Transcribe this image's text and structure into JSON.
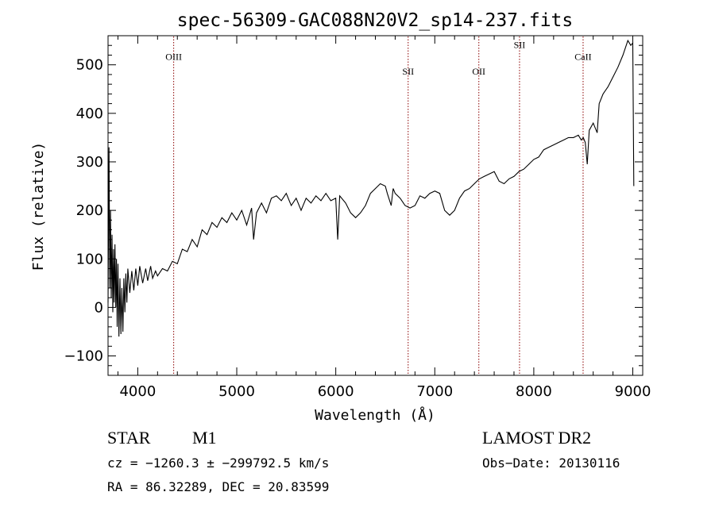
{
  "chart_data": {
    "type": "line",
    "title": "spec-56309-GAC088N20V2_sp14-237.fits",
    "xlabel": "Wavelength (Å)",
    "ylabel": "Flux (relative)",
    "xlim": [
      3700,
      9100
    ],
    "ylim": [
      -140,
      560
    ],
    "x_ticks": [
      4000,
      5000,
      6000,
      7000,
      8000,
      9000
    ],
    "y_ticks": [
      -100,
      0,
      100,
      200,
      300,
      400,
      500
    ],
    "grid": false,
    "series": [
      {
        "points": [
          [
            3700,
            10
          ],
          [
            3710,
            330
          ],
          [
            3718,
            40
          ],
          [
            3725,
            200
          ],
          [
            3732,
            20
          ],
          [
            3740,
            150
          ],
          [
            3748,
            -10
          ],
          [
            3755,
            120
          ],
          [
            3762,
            10
          ],
          [
            3770,
            130
          ],
          [
            3778,
            0
          ],
          [
            3785,
            100
          ],
          [
            3792,
            -40
          ],
          [
            3800,
            90
          ],
          [
            3810,
            -60
          ],
          [
            3820,
            60
          ],
          [
            3830,
            -55
          ],
          [
            3840,
            40
          ],
          [
            3850,
            -50
          ],
          [
            3860,
            60
          ],
          [
            3870,
            -10
          ],
          [
            3880,
            70
          ],
          [
            3890,
            10
          ],
          [
            3900,
            80
          ],
          [
            3920,
            30
          ],
          [
            3940,
            75
          ],
          [
            3960,
            35
          ],
          [
            3980,
            80
          ],
          [
            4000,
            45
          ],
          [
            4020,
            85
          ],
          [
            4050,
            50
          ],
          [
            4080,
            80
          ],
          [
            4100,
            55
          ],
          [
            4130,
            85
          ],
          [
            4150,
            60
          ],
          [
            4180,
            75
          ],
          [
            4200,
            65
          ],
          [
            4250,
            80
          ],
          [
            4300,
            75
          ],
          [
            4350,
            95
          ],
          [
            4400,
            90
          ],
          [
            4450,
            120
          ],
          [
            4500,
            115
          ],
          [
            4550,
            140
          ],
          [
            4600,
            125
          ],
          [
            4650,
            160
          ],
          [
            4700,
            150
          ],
          [
            4750,
            175
          ],
          [
            4800,
            165
          ],
          [
            4850,
            185
          ],
          [
            4900,
            175
          ],
          [
            4950,
            195
          ],
          [
            5000,
            180
          ],
          [
            5050,
            200
          ],
          [
            5100,
            170
          ],
          [
            5150,
            205
          ],
          [
            5170,
            140
          ],
          [
            5200,
            195
          ],
          [
            5250,
            215
          ],
          [
            5300,
            195
          ],
          [
            5350,
            225
          ],
          [
            5400,
            230
          ],
          [
            5450,
            220
          ],
          [
            5500,
            235
          ],
          [
            5550,
            210
          ],
          [
            5600,
            225
          ],
          [
            5650,
            200
          ],
          [
            5700,
            225
          ],
          [
            5750,
            215
          ],
          [
            5800,
            230
          ],
          [
            5850,
            220
          ],
          [
            5900,
            235
          ],
          [
            5950,
            220
          ],
          [
            6000,
            225
          ],
          [
            6020,
            140
          ],
          [
            6040,
            230
          ],
          [
            6100,
            215
          ],
          [
            6150,
            195
          ],
          [
            6200,
            185
          ],
          [
            6250,
            195
          ],
          [
            6300,
            210
          ],
          [
            6350,
            235
          ],
          [
            6400,
            245
          ],
          [
            6450,
            255
          ],
          [
            6500,
            250
          ],
          [
            6520,
            235
          ],
          [
            6560,
            210
          ],
          [
            6580,
            245
          ],
          [
            6600,
            235
          ],
          [
            6650,
            225
          ],
          [
            6700,
            210
          ],
          [
            6750,
            205
          ],
          [
            6800,
            210
          ],
          [
            6850,
            230
          ],
          [
            6900,
            225
          ],
          [
            6950,
            235
          ],
          [
            7000,
            240
          ],
          [
            7050,
            235
          ],
          [
            7100,
            200
          ],
          [
            7150,
            190
          ],
          [
            7200,
            200
          ],
          [
            7250,
            225
          ],
          [
            7300,
            240
          ],
          [
            7350,
            245
          ],
          [
            7400,
            255
          ],
          [
            7450,
            265
          ],
          [
            7500,
            270
          ],
          [
            7550,
            275
          ],
          [
            7600,
            280
          ],
          [
            7650,
            260
          ],
          [
            7700,
            255
          ],
          [
            7750,
            265
          ],
          [
            7800,
            270
          ],
          [
            7850,
            280
          ],
          [
            7900,
            285
          ],
          [
            7950,
            295
          ],
          [
            8000,
            305
          ],
          [
            8050,
            310
          ],
          [
            8100,
            325
          ],
          [
            8150,
            330
          ],
          [
            8200,
            335
          ],
          [
            8250,
            340
          ],
          [
            8300,
            345
          ],
          [
            8350,
            350
          ],
          [
            8400,
            350
          ],
          [
            8450,
            355
          ],
          [
            8480,
            345
          ],
          [
            8500,
            350
          ],
          [
            8520,
            340
          ],
          [
            8540,
            295
          ],
          [
            8560,
            365
          ],
          [
            8600,
            380
          ],
          [
            8640,
            360
          ],
          [
            8660,
            420
          ],
          [
            8700,
            440
          ],
          [
            8750,
            455
          ],
          [
            8800,
            475
          ],
          [
            8850,
            495
          ],
          [
            8900,
            520
          ],
          [
            8950,
            550
          ],
          [
            8980,
            540
          ],
          [
            9000,
            545
          ],
          [
            9010,
            250
          ]
        ]
      }
    ],
    "line_annotations": [
      {
        "label": "OIII",
        "x": 4363,
        "label_level": 510
      },
      {
        "label": "SII",
        "x": 6731,
        "label_level": 480
      },
      {
        "label": "OII",
        "x": 7445,
        "label_level": 480
      },
      {
        "label": "SII",
        "x": 7856,
        "label_level": 535
      },
      {
        "label": "CaII",
        "x": 8498,
        "label_level": 510
      }
    ],
    "colors": {
      "line": "#000000",
      "marker": "#8b0000"
    }
  },
  "info": {
    "object_type": "STAR",
    "subclass": "M1",
    "survey": "LAMOST DR2",
    "cz_line": "cz = −1260.3 ± −299792.5 km/s",
    "obs_date": "Obs−Date: 20130116",
    "coords": "RA =  86.32289, DEC =  20.83599"
  }
}
